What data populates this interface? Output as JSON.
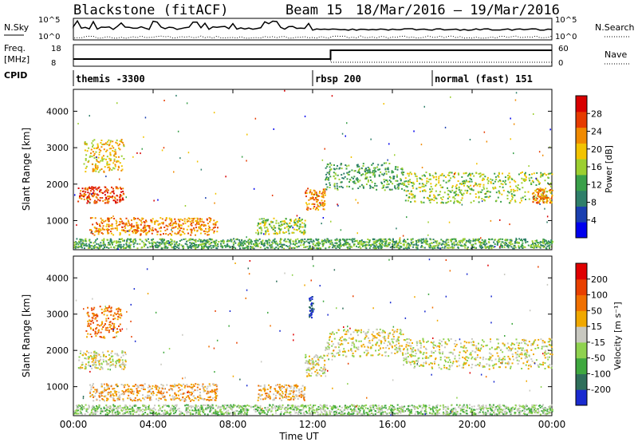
{
  "header": {
    "station": "Blackstone (fitACF)",
    "beam": "Beam 15",
    "dates": "18/Mar/2016 – 19/Mar/2016"
  },
  "top_panels": {
    "nsky_label": "N.Sky",
    "nsky_ticks": [
      "10^5",
      "10^0"
    ],
    "nsearch_label": "N.Search",
    "nsearch_ticks": [
      "10^5",
      "10^0"
    ],
    "freq_label_line1": "Freq.",
    "freq_label_line2": "[MHz]",
    "freq_ticks": [
      "18",
      "8"
    ],
    "nave_label": "Nave",
    "nave_ticks": [
      "60",
      "0"
    ],
    "cpid_label": "CPID",
    "cpid_segments": [
      {
        "label": "themis -3300",
        "start_hour": 0.0
      },
      {
        "label": "rbsp 200",
        "start_hour": 12.0
      },
      {
        "label": "normal (fast) 151",
        "start_hour": 18.0
      }
    ]
  },
  "chart_data": [
    {
      "type": "heatmap",
      "name": "power",
      "ylabel": "Slant Range [km]",
      "yticks": [
        "4000",
        "3000",
        "2000",
        "1000"
      ],
      "ylim": [
        200,
        4600
      ],
      "xlim": [
        0,
        24
      ],
      "colorbar_label": "Power [dB]",
      "colorbar_ticks": [
        "28",
        "24",
        "20",
        "16",
        "12",
        "8",
        "4"
      ],
      "colorbar_colors": [
        "#0000ee",
        "#1a3fb0",
        "#2f7f6a",
        "#3aa04a",
        "#9ccf30",
        "#f2c300",
        "#f08a00",
        "#e63b00",
        "#d80000"
      ],
      "echo_regions": [
        {
          "x": [
            0.2,
            2.5
          ],
          "y": [
            1500,
            1950
          ],
          "level": 7
        },
        {
          "x": [
            0.5,
            2.5
          ],
          "y": [
            2350,
            3250
          ],
          "level": 5
        },
        {
          "x": [
            0.8,
            7.2
          ],
          "y": [
            620,
            1100
          ],
          "level": 6
        },
        {
          "x": [
            9.2,
            11.6
          ],
          "y": [
            640,
            1080
          ],
          "level": 4
        },
        {
          "x": [
            11.6,
            12.6
          ],
          "y": [
            1300,
            1900
          ],
          "level": 6
        },
        {
          "x": [
            12.6,
            16.5
          ],
          "y": [
            1850,
            2600
          ],
          "level": 3
        },
        {
          "x": [
            16.5,
            24.0
          ],
          "y": [
            1500,
            2350
          ],
          "level": 4
        },
        {
          "x": [
            23.0,
            24.0
          ],
          "y": [
            1500,
            1900
          ],
          "level": 6
        },
        {
          "x": [
            0.0,
            24.0
          ],
          "y": [
            250,
            520
          ],
          "level": 3
        }
      ]
    },
    {
      "type": "heatmap",
      "name": "velocity",
      "ylabel": "Slant Range [km]",
      "yticks": [
        "4000",
        "3000",
        "2000",
        "1000"
      ],
      "ylim": [
        200,
        4600
      ],
      "xlim": [
        0,
        24
      ],
      "xticks": [
        "00:00",
        "04:00",
        "08:00",
        "12:00",
        "16:00",
        "20:00",
        "00:00"
      ],
      "xlabel": "Time UT",
      "colorbar_label": "Velocity [m s⁻¹]",
      "colorbar_ticks": [
        "200",
        "100",
        "50",
        "15",
        "-15",
        "-50",
        "-100",
        "-200"
      ],
      "colorbar_colors": [
        "#1a2bd0",
        "#2f6f5a",
        "#3fa83f",
        "#8fd24f",
        "#c8c8c0",
        "#f0a800",
        "#f07000",
        "#e84000",
        "#e00000"
      ],
      "echo_regions": [
        {
          "x": [
            0.2,
            2.6
          ],
          "y": [
            1500,
            2000
          ],
          "level": 4
        },
        {
          "x": [
            0.6,
            2.4
          ],
          "y": [
            2350,
            3250
          ],
          "level": 6
        },
        {
          "x": [
            0.8,
            7.2
          ],
          "y": [
            620,
            1100
          ],
          "level": 5
        },
        {
          "x": [
            9.2,
            11.6
          ],
          "y": [
            640,
            1080
          ],
          "level": 5
        },
        {
          "x": [
            11.6,
            12.6
          ],
          "y": [
            1300,
            1900
          ],
          "level": 4
        },
        {
          "x": [
            11.8,
            12.0
          ],
          "y": [
            2900,
            3500
          ],
          "level": 0
        },
        {
          "x": [
            12.6,
            16.5
          ],
          "y": [
            1850,
            2600
          ],
          "level": 4
        },
        {
          "x": [
            16.5,
            24.0
          ],
          "y": [
            1500,
            2350
          ],
          "level": 4
        },
        {
          "x": [
            0.0,
            24.0
          ],
          "y": [
            250,
            520
          ],
          "level": 3
        }
      ]
    }
  ]
}
